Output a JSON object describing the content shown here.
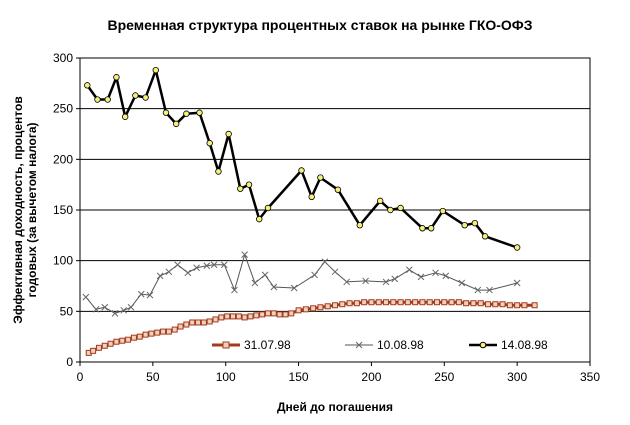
{
  "chart_data": {
    "type": "line",
    "title": "Временная структура процентных ставок на рынке ГКО-ОФЗ",
    "xlabel": "Дней до погашения",
    "ylabel_line1": "Эффективная доходность, процентов",
    "ylabel_line2": "годовых (за вычетом налога)",
    "xlim": [
      0,
      350
    ],
    "ylim": [
      0,
      300
    ],
    "xticks": [
      0,
      50,
      100,
      150,
      200,
      250,
      300,
      350
    ],
    "yticks": [
      0,
      50,
      100,
      150,
      200,
      250,
      300
    ],
    "grid": "horizontal",
    "legend_position": "bottom-right",
    "series": [
      {
        "name": "31.07.98",
        "color": "#a33a1a",
        "marker": "square",
        "points": [
          [
            6,
            9
          ],
          [
            9,
            11
          ],
          [
            13,
            14
          ],
          [
            17,
            16
          ],
          [
            21,
            18
          ],
          [
            25,
            20
          ],
          [
            29,
            21
          ],
          [
            33,
            22
          ],
          [
            37,
            24
          ],
          [
            41,
            25
          ],
          [
            45,
            27
          ],
          [
            49,
            28
          ],
          [
            53,
            29
          ],
          [
            57,
            30
          ],
          [
            61,
            30
          ],
          [
            65,
            32
          ],
          [
            69,
            35
          ],
          [
            73,
            37
          ],
          [
            77,
            39
          ],
          [
            81,
            39
          ],
          [
            85,
            39
          ],
          [
            89,
            40
          ],
          [
            93,
            42
          ],
          [
            97,
            44
          ],
          [
            101,
            45
          ],
          [
            105,
            45
          ],
          [
            109,
            45
          ],
          [
            113,
            44
          ],
          [
            117,
            45
          ],
          [
            121,
            46
          ],
          [
            125,
            47
          ],
          [
            129,
            48
          ],
          [
            133,
            48
          ],
          [
            137,
            47
          ],
          [
            141,
            47
          ],
          [
            145,
            48
          ],
          [
            150,
            51
          ],
          [
            155,
            52
          ],
          [
            160,
            53
          ],
          [
            165,
            54
          ],
          [
            170,
            55
          ],
          [
            175,
            56
          ],
          [
            180,
            57
          ],
          [
            185,
            58
          ],
          [
            190,
            58
          ],
          [
            195,
            59
          ],
          [
            200,
            59
          ],
          [
            205,
            59
          ],
          [
            210,
            59
          ],
          [
            215,
            59
          ],
          [
            220,
            59
          ],
          [
            225,
            59
          ],
          [
            230,
            59
          ],
          [
            235,
            59
          ],
          [
            240,
            59
          ],
          [
            245,
            59
          ],
          [
            250,
            59
          ],
          [
            255,
            59
          ],
          [
            260,
            59
          ],
          [
            265,
            58
          ],
          [
            270,
            58
          ],
          [
            275,
            58
          ],
          [
            280,
            57
          ],
          [
            285,
            57
          ],
          [
            290,
            57
          ],
          [
            295,
            56
          ],
          [
            300,
            56
          ],
          [
            305,
            56
          ],
          [
            312,
            56
          ]
        ]
      },
      {
        "name": "10.08.98",
        "color": "#555555",
        "marker": "cross",
        "points": [
          [
            4,
            64
          ],
          [
            11,
            52
          ],
          [
            17,
            54
          ],
          [
            24,
            48
          ],
          [
            30,
            51
          ],
          [
            35,
            54
          ],
          [
            42,
            67
          ],
          [
            48,
            66
          ],
          [
            55,
            85
          ],
          [
            61,
            89
          ],
          [
            67,
            96
          ],
          [
            74,
            88
          ],
          [
            80,
            93
          ],
          [
            87,
            95
          ],
          [
            92,
            96
          ],
          [
            99,
            96
          ],
          [
            106,
            71
          ],
          [
            113,
            106
          ],
          [
            120,
            78
          ],
          [
            127,
            86
          ],
          [
            133,
            74
          ],
          [
            147,
            73
          ],
          [
            161,
            86
          ],
          [
            168,
            99
          ],
          [
            175,
            89
          ],
          [
            183,
            79
          ],
          [
            196,
            80
          ],
          [
            210,
            79
          ],
          [
            216,
            82
          ],
          [
            226,
            91
          ],
          [
            234,
            84
          ],
          [
            244,
            88
          ],
          [
            251,
            85
          ],
          [
            262,
            78
          ],
          [
            273,
            71
          ],
          [
            281,
            71
          ],
          [
            300,
            78
          ]
        ]
      },
      {
        "name": "14.08.98",
        "color": "#000000",
        "marker": "circle",
        "points": [
          [
            5,
            273
          ],
          [
            12,
            259
          ],
          [
            19,
            259
          ],
          [
            25,
            281
          ],
          [
            31,
            242
          ],
          [
            38,
            263
          ],
          [
            45,
            261
          ],
          [
            52,
            288
          ],
          [
            59,
            246
          ],
          [
            66,
            235
          ],
          [
            73,
            245
          ],
          [
            82,
            246
          ],
          [
            89,
            216
          ],
          [
            95,
            188
          ],
          [
            102,
            225
          ],
          [
            110,
            171
          ],
          [
            116,
            175
          ],
          [
            123,
            141
          ],
          [
            129,
            152
          ],
          [
            152,
            189
          ],
          [
            159,
            163
          ],
          [
            165,
            182
          ],
          [
            177,
            170
          ],
          [
            192,
            135
          ],
          [
            206,
            159
          ],
          [
            213,
            150
          ],
          [
            220,
            152
          ],
          [
            235,
            132
          ],
          [
            241,
            132
          ],
          [
            249,
            149
          ],
          [
            264,
            135
          ],
          [
            271,
            137
          ],
          [
            278,
            124
          ],
          [
            300,
            113
          ]
        ]
      }
    ]
  }
}
